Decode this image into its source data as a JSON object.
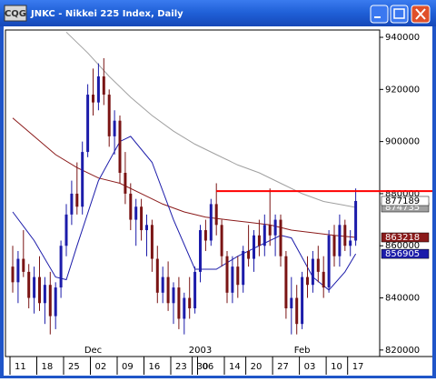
{
  "window_title": "JNKC - Nikkei 225 Index, Daily",
  "app_icon": "CQG",
  "chart_data": {
    "type": "candlestick",
    "up_color": "#1c1caa",
    "down_color": "#7a1414",
    "categories": [
      "11",
      null,
      null,
      null,
      null,
      "18",
      null,
      null,
      null,
      null,
      "25",
      null,
      null,
      null,
      null,
      "02",
      null,
      null,
      null,
      null,
      "09",
      null,
      null,
      null,
      null,
      "16",
      null,
      null,
      null,
      null,
      "23",
      null,
      null,
      null,
      "30",
      "06",
      null,
      null,
      null,
      null,
      "14",
      null,
      null,
      null,
      "20",
      null,
      null,
      null,
      null,
      "27",
      null,
      null,
      null,
      null,
      "03",
      null,
      null,
      null,
      null,
      "10",
      null,
      null,
      null,
      "17",
      null
    ],
    "month_labels": [
      {
        "text": "Dec",
        "category": 15
      },
      {
        "text": "2003",
        "category": 35
      },
      {
        "text": "Feb",
        "category": 54
      }
    ],
    "open": [
      852000,
      846000,
      855000,
      850000,
      840000,
      848000,
      838000,
      845000,
      833000,
      844000,
      860000,
      872000,
      880000,
      875000,
      896000,
      918000,
      915000,
      925000,
      918000,
      902000,
      908000,
      888000,
      880000,
      870000,
      875000,
      866000,
      868000,
      855000,
      842000,
      848000,
      838000,
      844000,
      832000,
      840000,
      836000,
      850000,
      866000,
      862000,
      876000,
      868000,
      856000,
      842000,
      852000,
      845000,
      858000,
      855000,
      864000,
      860000,
      868000,
      864000,
      870000,
      856000,
      836000,
      840000,
      830000,
      848000,
      845000,
      855000,
      850000,
      844000,
      864000,
      856000,
      868000,
      860000,
      862000
    ],
    "high": [
      860000,
      858000,
      866000,
      853000,
      852000,
      856000,
      848000,
      850000,
      846000,
      862000,
      876000,
      885000,
      892000,
      900000,
      922000,
      928000,
      930000,
      932000,
      920000,
      912000,
      910000,
      896000,
      884000,
      878000,
      878000,
      872000,
      870000,
      860000,
      852000,
      854000,
      846000,
      848000,
      842000,
      848000,
      852000,
      868000,
      870000,
      878000,
      884000,
      870000,
      858000,
      856000,
      856000,
      860000,
      868000,
      866000,
      870000,
      872000,
      882000,
      872000,
      872000,
      858000,
      848000,
      845000,
      850000,
      856000,
      858000,
      860000,
      856000,
      866000,
      868000,
      872000,
      870000,
      866000,
      882000
    ],
    "low": [
      842000,
      838000,
      848000,
      836000,
      834000,
      835000,
      830000,
      826000,
      828000,
      840000,
      856000,
      868000,
      872000,
      872000,
      894000,
      910000,
      912000,
      914000,
      898000,
      895000,
      884000,
      876000,
      866000,
      860000,
      862000,
      856000,
      850000,
      838000,
      838000,
      835000,
      830000,
      828000,
      826000,
      832000,
      834000,
      846000,
      858000,
      860000,
      864000,
      852000,
      838000,
      838000,
      840000,
      842000,
      852000,
      850000,
      856000,
      856000,
      860000,
      856000,
      852000,
      832000,
      826000,
      826000,
      828000,
      840000,
      842000,
      846000,
      840000,
      842000,
      852000,
      852000,
      858000,
      856000,
      860000
    ],
    "close": [
      846000,
      855000,
      850000,
      840000,
      848000,
      838000,
      845000,
      833000,
      844000,
      860000,
      872000,
      880000,
      875000,
      896000,
      918000,
      915000,
      925000,
      918000,
      902000,
      908000,
      888000,
      880000,
      870000,
      875000,
      866000,
      868000,
      855000,
      842000,
      848000,
      838000,
      844000,
      832000,
      840000,
      836000,
      850000,
      866000,
      862000,
      876000,
      868000,
      856000,
      842000,
      852000,
      845000,
      858000,
      855000,
      864000,
      860000,
      868000,
      864000,
      870000,
      856000,
      836000,
      840000,
      830000,
      848000,
      845000,
      855000,
      850000,
      844000,
      864000,
      856000,
      868000,
      860000,
      862000,
      877189
    ],
    "overlays": [
      {
        "color": "#a0a0a0",
        "x": [
          10,
          14,
          18,
          22,
          26,
          30,
          34,
          38,
          42,
          46,
          50,
          54,
          58,
          62,
          64
        ],
        "values": [
          942000,
          934000,
          925000,
          917000,
          910000,
          904000,
          899000,
          895000,
          891000,
          888000,
          884000,
          880000,
          877000,
          875500,
          874735
        ]
      },
      {
        "color": "#8b1a1a",
        "x": [
          0,
          4,
          8,
          12,
          16,
          20,
          24,
          28,
          32,
          36,
          40,
          44,
          48,
          52,
          56,
          60,
          64
        ],
        "values": [
          909000,
          902000,
          895000,
          890000,
          886000,
          884000,
          880000,
          876000,
          873000,
          871000,
          870000,
          869000,
          868000,
          866000,
          865000,
          864000,
          863218
        ]
      },
      {
        "color": "#1c1caa",
        "x": [
          0,
          4,
          8,
          10,
          12,
          16,
          20,
          22,
          26,
          30,
          34,
          38,
          42,
          46,
          50,
          52,
          56,
          59,
          62,
          64
        ],
        "values": [
          873000,
          862000,
          848000,
          847000,
          860000,
          885000,
          900000,
          902000,
          892000,
          870000,
          851000,
          851000,
          856000,
          860000,
          864000,
          863000,
          848000,
          843000,
          850000,
          856905
        ]
      }
    ],
    "reference_line": {
      "value": 881000,
      "from_category": 38,
      "color": "#ff0000"
    },
    "ylim": [
      817500,
      942800
    ],
    "yticks": [
      820000,
      840000,
      860000,
      880000,
      900000,
      920000,
      940000
    ]
  }
}
